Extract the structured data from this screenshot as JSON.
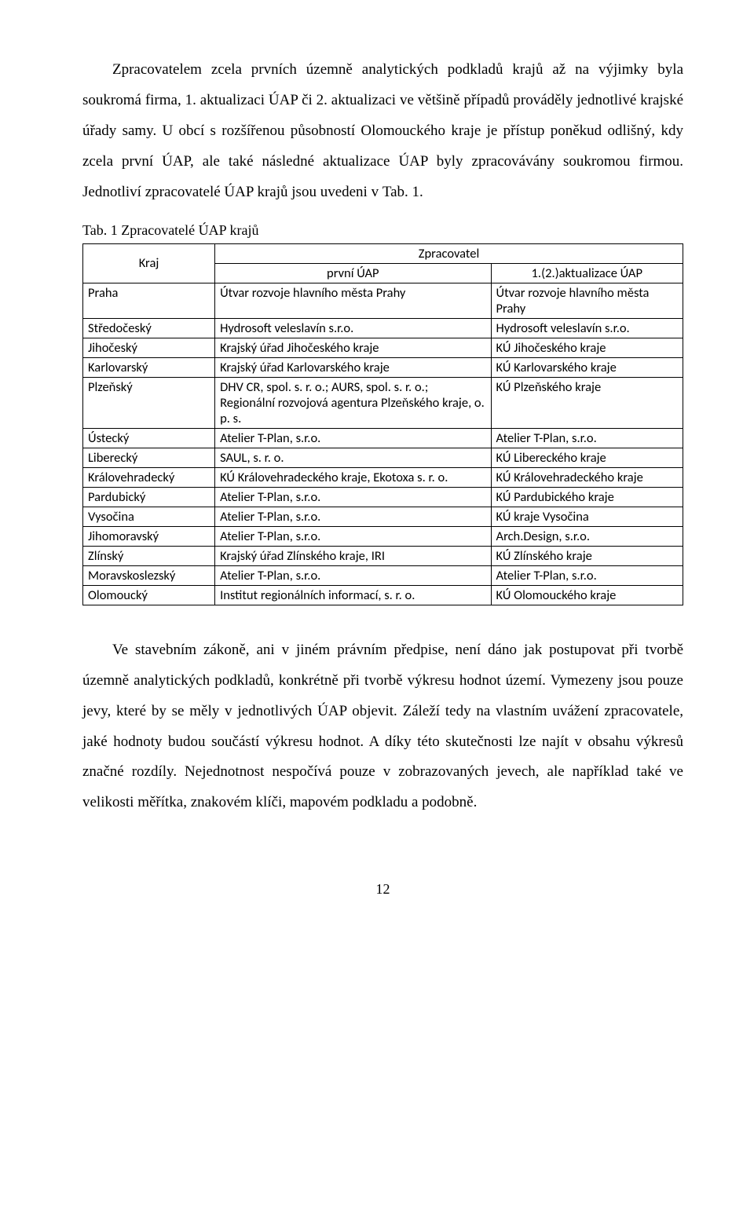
{
  "paragraph1": "Zpracovatelem zcela prvních územně analytických podkladů krajů až na výjimky byla soukromá firma, 1. aktualizaci ÚAP či 2. aktualizaci ve většině případů prováděly jednotlivé krajské úřady samy. U obcí s rozšířenou působností Olomouckého kraje je přístup poněkud odlišný, kdy zcela první ÚAP, ale také následné aktualizace ÚAP byly zpracovávány soukromou firmou. Jednotliví zpracovatelé ÚAP krajů jsou uvedeni v Tab. 1.",
  "table_caption": "Tab. 1 Zpracovatelé ÚAP krajů",
  "table": {
    "header_kraj": "Kraj",
    "header_zpracovatel": "Zpracovatel",
    "header_prvni": "první ÚAP",
    "header_aktual": "1.(2.)aktualizace ÚAP",
    "rows": [
      {
        "kraj": "Praha",
        "prvni": "Útvar rozvoje hlavního města Prahy",
        "aktual": "Útvar rozvoje hlavního města Prahy"
      },
      {
        "kraj": "Středočeský",
        "prvni": "Hydrosoft veleslavín s.r.o.",
        "aktual": "Hydrosoft veleslavín s.r.o."
      },
      {
        "kraj": "Jihočeský",
        "prvni": "Krajský úřad Jihočeského kraje",
        "aktual": "KÚ Jihočeského kraje"
      },
      {
        "kraj": "Karlovarský",
        "prvni": "Krajský úřad Karlovarského kraje",
        "aktual": "KÚ Karlovarského kraje"
      },
      {
        "kraj": "Plzeňský",
        "prvni": "DHV CR, spol. s. r. o.; AURS, spol. s. r. o.; Regionální rozvojová agentura Plzeňského kraje, o. p. s.",
        "aktual": "KÚ Plzeňského kraje"
      },
      {
        "kraj": "Ústecký",
        "prvni": "Atelier T-Plan, s.r.o.",
        "aktual": "Atelier T-Plan, s.r.o."
      },
      {
        "kraj": "Liberecký",
        "prvni": "SAUL, s. r. o.",
        "aktual": "KÚ Libereckého kraje"
      },
      {
        "kraj": "Královehradecký",
        "prvni": "KÚ Královehradeckého kraje, Ekotoxa s. r. o.",
        "aktual": "KÚ Královehradeckého kraje"
      },
      {
        "kraj": "Pardubický",
        "prvni": "Atelier T-Plan, s.r.o.",
        "aktual": "KÚ Pardubického kraje"
      },
      {
        "kraj": "Vysočina",
        "prvni": "Atelier T-Plan, s.r.o.",
        "aktual": "KÚ kraje Vysočina"
      },
      {
        "kraj": "Jihomoravský",
        "prvni": "Atelier T-Plan, s.r.o.",
        "aktual": "Arch.Design, s.r.o."
      },
      {
        "kraj": "Zlínský",
        "prvni": "Krajský úřad Zlínského kraje, IRI",
        "aktual": "KÚ Zlínského kraje"
      },
      {
        "kraj": "Moravskoslezský",
        "prvni": "Atelier T-Plan, s.r.o.",
        "aktual": "Atelier T-Plan, s.r.o."
      },
      {
        "kraj": "Olomoucký",
        "prvni": "Institut regionálních informací, s. r. o.",
        "aktual": "KÚ Olomouckého kraje"
      }
    ]
  },
  "paragraph2": "Ve stavebním zákoně, ani v jiném právním předpise, není dáno jak postupovat při tvorbě územně analytických podkladů, konkrétně při tvorbě výkresu hodnot území. Vymezeny jsou pouze jevy, které by se měly v jednotlivých ÚAP objevit. Záleží tedy na vlastním uvážení zpracovatele, jaké hodnoty budou součástí výkresu hodnot. A díky této skutečnosti lze najít v obsahu výkresů značné rozdíly. Nejednotnost nespočívá pouze v zobrazovaných jevech, ale například také ve velikosti měřítka, znakovém klíči, mapovém podkladu a podobně.",
  "page_number": "12"
}
